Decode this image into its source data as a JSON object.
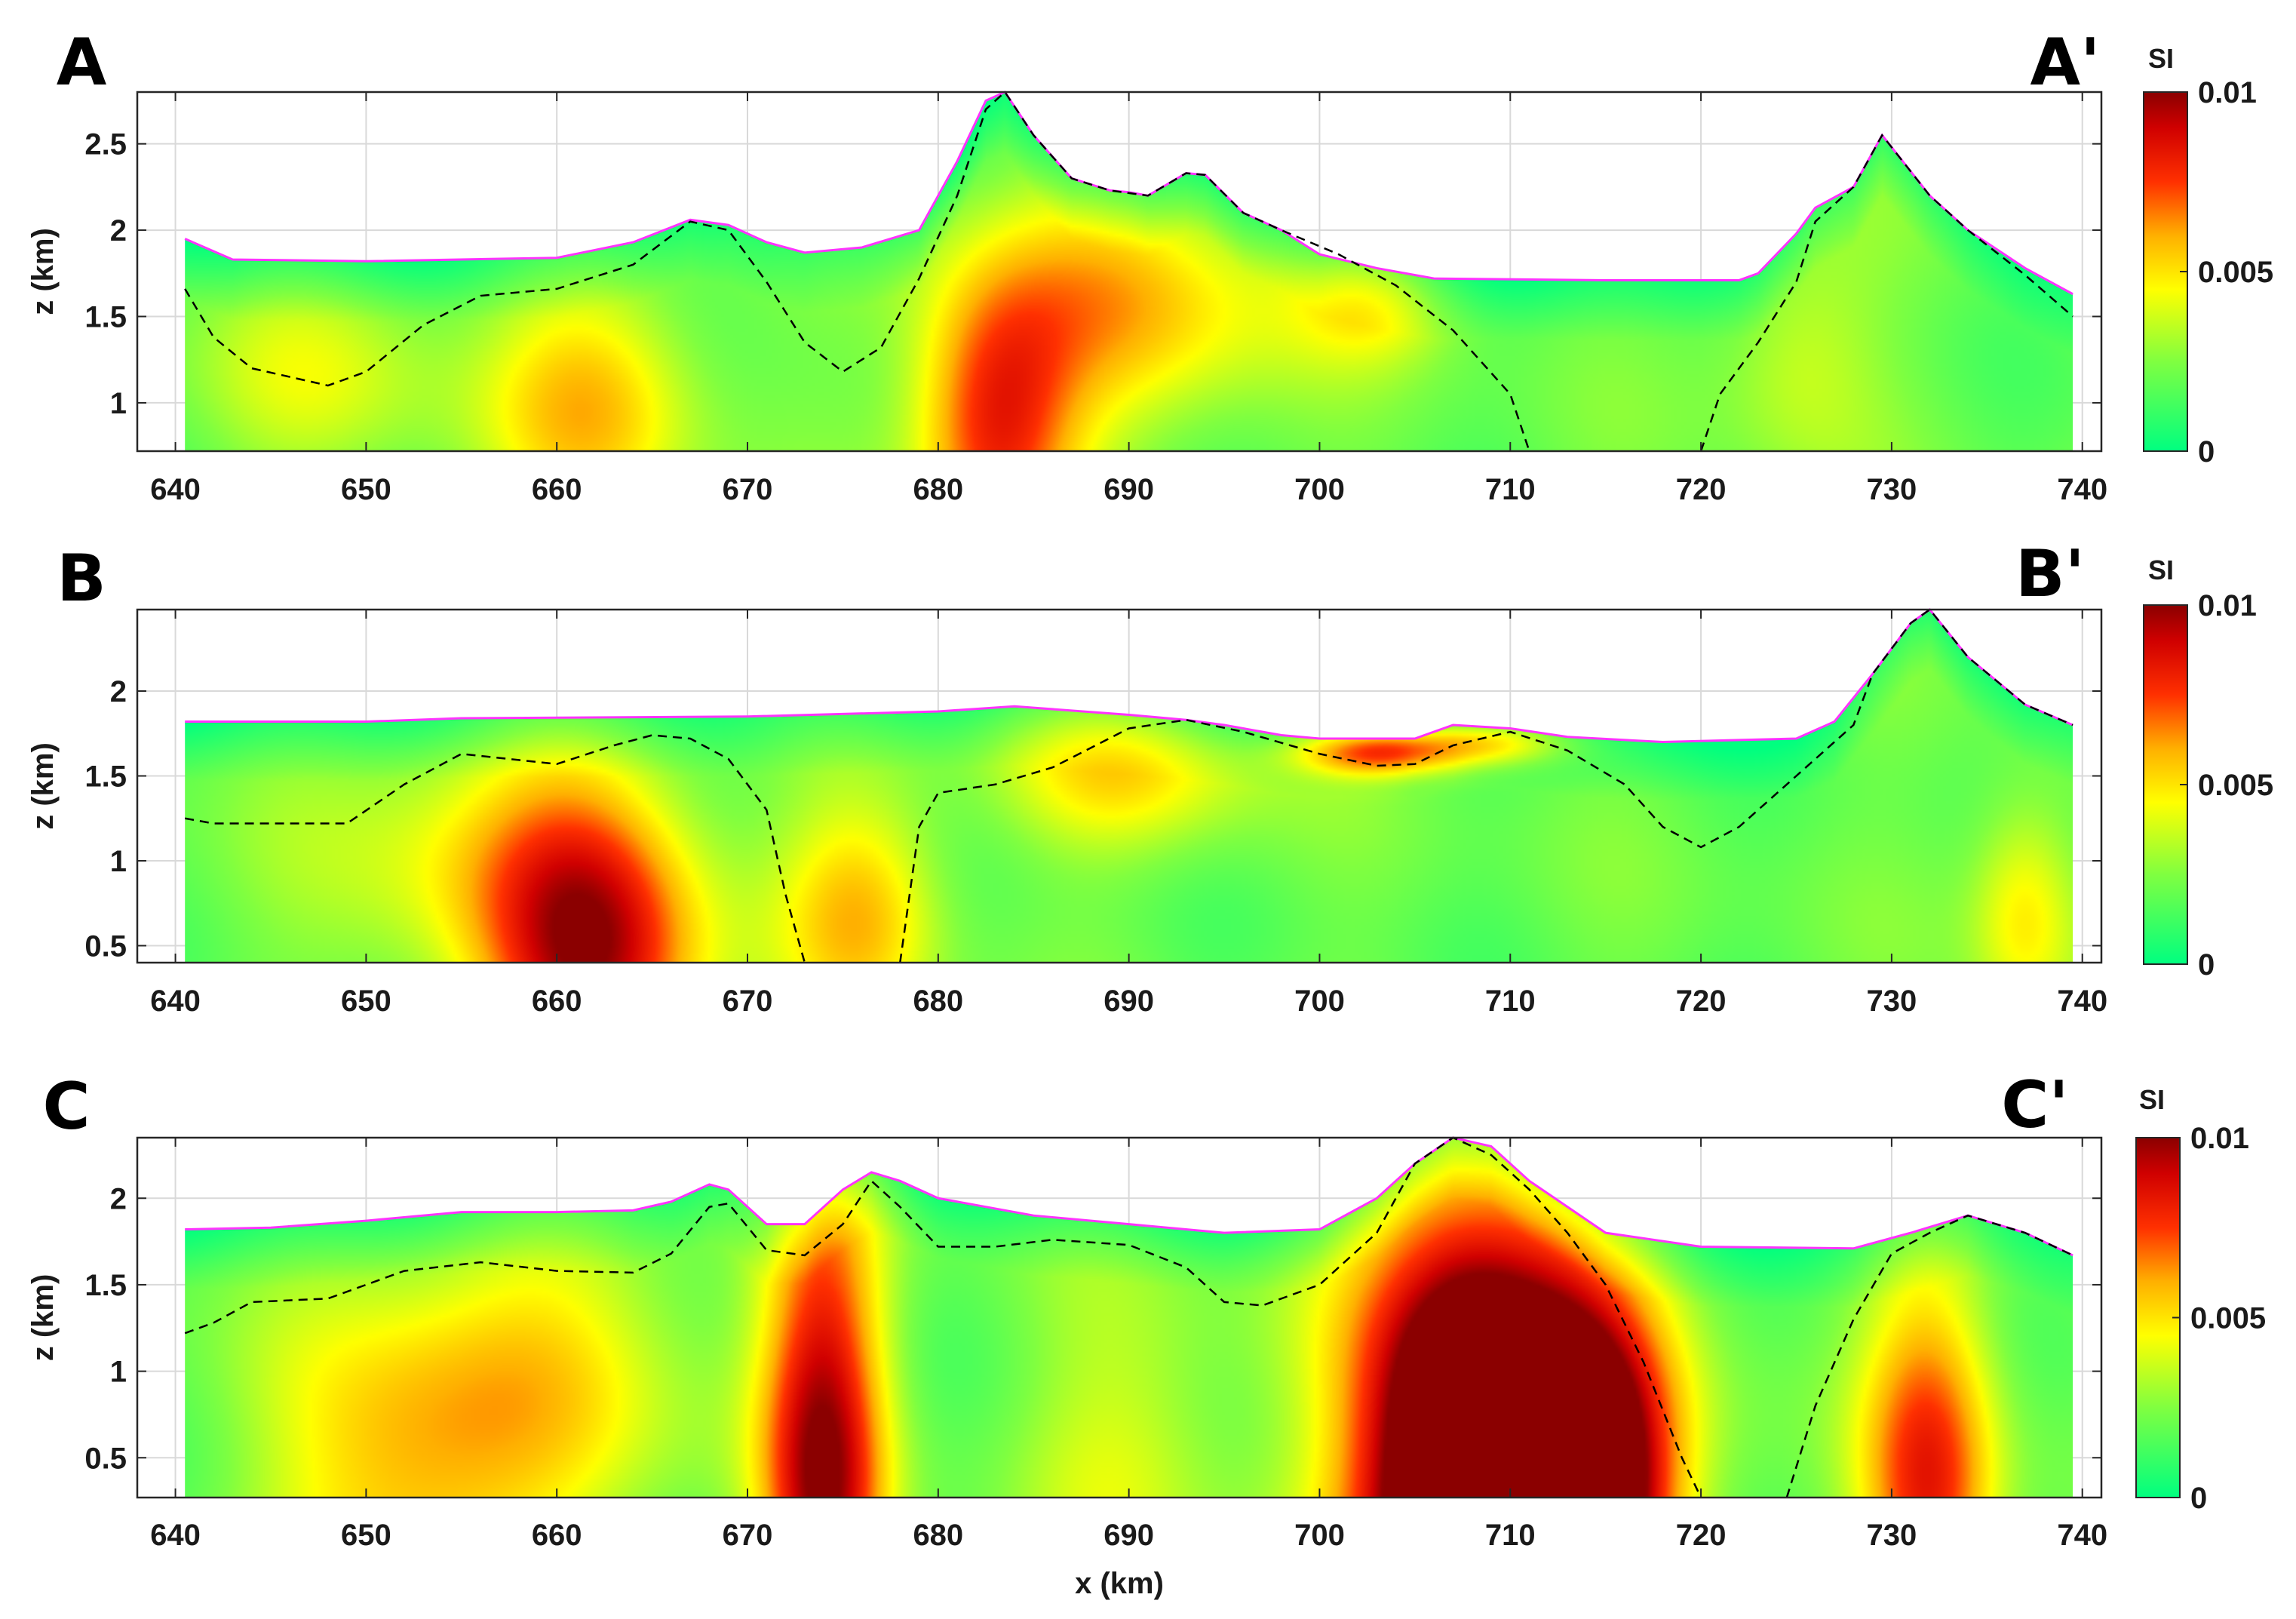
{
  "chart_data": [
    {
      "type": "heatmap",
      "panel_label": "A",
      "end_label": "A'",
      "xlim": [
        638,
        741
      ],
      "ylim": [
        0.72,
        2.8
      ],
      "x_ticks": [
        640,
        650,
        660,
        670,
        680,
        690,
        700,
        710,
        720,
        730,
        740
      ],
      "x_tick_labels": [
        "640",
        "650",
        "660",
        "670",
        "680",
        "690",
        "700",
        "710",
        "720",
        "730",
        "740"
      ],
      "y_ticks": [
        1,
        1.5,
        2,
        2.5
      ],
      "y_tick_labels": [
        "1",
        "1.5",
        "2",
        "2.5"
      ],
      "ylabel": "z (km)",
      "xlabel": "",
      "grid": true,
      "colorbar": {
        "title": "SI",
        "min": 0,
        "max": 0.01,
        "tick_labels": [
          "0.01",
          "0.005",
          "0"
        ]
      },
      "topography": [
        [
          640.5,
          1.95
        ],
        [
          643,
          1.83
        ],
        [
          650,
          1.82
        ],
        [
          660,
          1.84
        ],
        [
          664,
          1.93
        ],
        [
          667,
          2.06
        ],
        [
          669,
          2.03
        ],
        [
          671,
          1.93
        ],
        [
          673,
          1.87
        ],
        [
          676,
          1.9
        ],
        [
          679,
          2.0
        ],
        [
          681,
          2.4
        ],
        [
          682.5,
          2.75
        ],
        [
          683.5,
          2.8
        ],
        [
          685,
          2.55
        ],
        [
          687,
          2.3
        ],
        [
          689,
          2.23
        ],
        [
          690,
          2.22
        ],
        [
          691,
          2.2
        ],
        [
          693,
          2.33
        ],
        [
          694,
          2.32
        ],
        [
          696,
          2.1
        ],
        [
          698,
          2.0
        ],
        [
          700,
          1.86
        ],
        [
          703,
          1.78
        ],
        [
          706,
          1.72
        ],
        [
          715,
          1.71
        ],
        [
          722,
          1.71
        ],
        [
          723,
          1.75
        ],
        [
          725,
          1.98
        ],
        [
          726,
          2.13
        ],
        [
          728,
          2.25
        ],
        [
          729.5,
          2.55
        ],
        [
          732,
          2.2
        ],
        [
          734,
          2.0
        ],
        [
          737,
          1.78
        ],
        [
          739.5,
          1.63
        ]
      ],
      "dashed_boundary": [
        [
          [
            640.5,
            1.66
          ],
          [
            642,
            1.38
          ],
          [
            644,
            1.2
          ],
          [
            648,
            1.1
          ],
          [
            650,
            1.18
          ],
          [
            653,
            1.45
          ],
          [
            656,
            1.62
          ],
          [
            660,
            1.66
          ],
          [
            664,
            1.8
          ],
          [
            667,
            2.05
          ],
          [
            669,
            2.0
          ],
          [
            671,
            1.7
          ],
          [
            673,
            1.35
          ],
          [
            675,
            1.18
          ],
          [
            677,
            1.32
          ],
          [
            679,
            1.72
          ],
          [
            681,
            2.2
          ],
          [
            682.5,
            2.7
          ],
          [
            683.5,
            2.8
          ],
          [
            685,
            2.55
          ],
          [
            687,
            2.3
          ],
          [
            689,
            2.23
          ],
          [
            691,
            2.2
          ],
          [
            693,
            2.33
          ],
          [
            694,
            2.32
          ],
          [
            696,
            2.1
          ],
          [
            698,
            2.0
          ],
          [
            701,
            1.86
          ],
          [
            704,
            1.68
          ],
          [
            707,
            1.42
          ],
          [
            710,
            1.05
          ],
          [
            711,
            0.72
          ]
        ],
        [
          [
            720,
            0.72
          ],
          [
            721,
            1.05
          ],
          [
            723,
            1.35
          ],
          [
            725,
            1.7
          ],
          [
            726,
            2.05
          ],
          [
            728,
            2.25
          ],
          [
            729.5,
            2.55
          ],
          [
            732,
            2.2
          ],
          [
            734,
            2.0
          ],
          [
            737,
            1.74
          ],
          [
            739.5,
            1.5
          ]
        ]
      ],
      "anomalies": [
        {
          "x": 683,
          "z": 0.85,
          "sx": 3,
          "sz": 0.6,
          "a": 0.6
        },
        {
          "x": 662,
          "z": 1.0,
          "sx": 4,
          "sz": 0.5,
          "a": 0.36
        },
        {
          "x": 690,
          "z": 1.55,
          "sx": 6,
          "sz": 0.5,
          "a": 0.36
        },
        {
          "x": 703,
          "z": 1.6,
          "sx": 3,
          "sz": 0.25,
          "a": 0.24
        },
        {
          "x": 648,
          "z": 1.2,
          "sx": 5,
          "sz": 0.4,
          "a": 0.18
        },
        {
          "x": 725,
          "z": 1.3,
          "sx": 3,
          "sz": 0.5,
          "a": 0.18
        }
      ]
    },
    {
      "type": "heatmap",
      "panel_label": "B",
      "end_label": "B'",
      "xlim": [
        638,
        741
      ],
      "ylim": [
        0.4,
        2.48
      ],
      "x_ticks": [
        640,
        650,
        660,
        670,
        680,
        690,
        700,
        710,
        720,
        730,
        740
      ],
      "x_tick_labels": [
        "640",
        "650",
        "660",
        "670",
        "680",
        "690",
        "700",
        "710",
        "720",
        "730",
        "740"
      ],
      "y_ticks": [
        0.5,
        1,
        1.5,
        2
      ],
      "y_tick_labels": [
        "0.5",
        "1",
        "1.5",
        "2"
      ],
      "ylabel": "z (km)",
      "xlabel": "",
      "grid": true,
      "colorbar": {
        "title": "SI",
        "min": 0,
        "max": 0.01,
        "tick_labels": [
          "0.01",
          "0.005",
          "0"
        ]
      },
      "topography": [
        [
          640.5,
          1.82
        ],
        [
          650,
          1.82
        ],
        [
          655,
          1.84
        ],
        [
          670,
          1.85
        ],
        [
          680,
          1.88
        ],
        [
          684,
          1.91
        ],
        [
          690,
          1.86
        ],
        [
          693,
          1.83
        ],
        [
          695,
          1.8
        ],
        [
          698,
          1.74
        ],
        [
          700,
          1.72
        ],
        [
          705,
          1.72
        ],
        [
          707,
          1.8
        ],
        [
          710,
          1.78
        ],
        [
          713,
          1.73
        ],
        [
          718,
          1.7
        ],
        [
          725,
          1.72
        ],
        [
          727,
          1.82
        ],
        [
          729,
          2.1
        ],
        [
          731,
          2.4
        ],
        [
          732,
          2.48
        ],
        [
          734,
          2.2
        ],
        [
          737,
          1.92
        ],
        [
          739.5,
          1.8
        ]
      ],
      "dashed_boundary": [
        [
          [
            640.5,
            1.25
          ],
          [
            642,
            1.22
          ],
          [
            649,
            1.22
          ],
          [
            652,
            1.45
          ],
          [
            655,
            1.63
          ],
          [
            660,
            1.57
          ],
          [
            663,
            1.68
          ],
          [
            665,
            1.74
          ],
          [
            667,
            1.72
          ],
          [
            669,
            1.6
          ],
          [
            671,
            1.3
          ],
          [
            672,
            0.8
          ],
          [
            673,
            0.4
          ]
        ],
        [
          [
            678,
            0.4
          ],
          [
            679,
            1.2
          ],
          [
            680,
            1.4
          ],
          [
            683,
            1.45
          ],
          [
            686,
            1.55
          ],
          [
            690,
            1.78
          ],
          [
            693,
            1.83
          ],
          [
            696,
            1.76
          ],
          [
            700,
            1.63
          ],
          [
            703,
            1.56
          ],
          [
            705,
            1.57
          ],
          [
            707,
            1.68
          ],
          [
            710,
            1.76
          ],
          [
            713,
            1.65
          ],
          [
            716,
            1.45
          ],
          [
            718,
            1.2
          ],
          [
            720,
            1.08
          ],
          [
            722,
            1.2
          ],
          [
            725,
            1.5
          ],
          [
            728,
            1.8
          ],
          [
            729,
            2.1
          ],
          [
            731,
            2.4
          ],
          [
            732,
            2.48
          ],
          [
            734,
            2.2
          ],
          [
            737,
            1.92
          ],
          [
            739.5,
            1.8
          ]
        ]
      ],
      "anomalies": [
        {
          "x": 662,
          "z": 0.4,
          "sx": 4,
          "sz": 0.7,
          "a": 0.7
        },
        {
          "x": 703,
          "z": 1.64,
          "sx": 3,
          "sz": 0.1,
          "a": 0.6
        },
        {
          "x": 709,
          "z": 1.7,
          "sx": 3,
          "sz": 0.1,
          "a": 0.42
        },
        {
          "x": 676,
          "z": 0.7,
          "sx": 3,
          "sz": 0.5,
          "a": 0.36
        },
        {
          "x": 690,
          "z": 1.55,
          "sx": 5,
          "sz": 0.35,
          "a": 0.3
        },
        {
          "x": 737,
          "z": 0.7,
          "sx": 2,
          "sz": 0.5,
          "a": 0.3
        },
        {
          "x": 656,
          "z": 1.0,
          "sx": 6,
          "sz": 0.6,
          "a": 0.24
        }
      ]
    },
    {
      "type": "heatmap",
      "panel_label": "C",
      "end_label": "C'",
      "xlim": [
        638,
        741
      ],
      "ylim": [
        0.27,
        2.35
      ],
      "x_ticks": [
        640,
        650,
        660,
        670,
        680,
        690,
        700,
        710,
        720,
        730,
        740
      ],
      "x_tick_labels": [
        "640",
        "650",
        "660",
        "670",
        "680",
        "690",
        "700",
        "710",
        "720",
        "730",
        "740"
      ],
      "y_ticks": [
        0.5,
        1,
        1.5,
        2
      ],
      "y_tick_labels": [
        "0.5",
        "1",
        "1.5",
        "2"
      ],
      "ylabel": "z (km)",
      "xlabel": "x (km)",
      "grid": true,
      "colorbar": {
        "title": "SI",
        "min": 0,
        "max": 0.01,
        "tick_labels": [
          "0.01",
          "0.005",
          "0"
        ]
      },
      "topography": [
        [
          640.5,
          1.82
        ],
        [
          645,
          1.83
        ],
        [
          650,
          1.87
        ],
        [
          655,
          1.92
        ],
        [
          660,
          1.92
        ],
        [
          664,
          1.93
        ],
        [
          666,
          1.98
        ],
        [
          668,
          2.08
        ],
        [
          669,
          2.05
        ],
        [
          671,
          1.85
        ],
        [
          673,
          1.85
        ],
        [
          675,
          2.05
        ],
        [
          676.5,
          2.15
        ],
        [
          678,
          2.1
        ],
        [
          680,
          2.0
        ],
        [
          685,
          1.9
        ],
        [
          690,
          1.85
        ],
        [
          695,
          1.8
        ],
        [
          700,
          1.82
        ],
        [
          703,
          2.0
        ],
        [
          705,
          2.2
        ],
        [
          707,
          2.35
        ],
        [
          709,
          2.3
        ],
        [
          711,
          2.1
        ],
        [
          715,
          1.8
        ],
        [
          720,
          1.72
        ],
        [
          728,
          1.71
        ],
        [
          731,
          1.8
        ],
        [
          734,
          1.9
        ],
        [
          737,
          1.8
        ],
        [
          739.5,
          1.67
        ]
      ],
      "dashed_boundary": [
        [
          [
            640.5,
            1.22
          ],
          [
            642,
            1.28
          ],
          [
            644,
            1.4
          ],
          [
            648,
            1.42
          ],
          [
            652,
            1.58
          ],
          [
            656,
            1.63
          ],
          [
            660,
            1.58
          ],
          [
            664,
            1.57
          ],
          [
            666,
            1.68
          ],
          [
            668,
            1.95
          ],
          [
            669,
            1.97
          ],
          [
            671,
            1.7
          ],
          [
            673,
            1.67
          ],
          [
            675,
            1.85
          ],
          [
            676.5,
            2.1
          ],
          [
            678,
            1.95
          ],
          [
            680,
            1.72
          ],
          [
            683,
            1.72
          ],
          [
            686,
            1.76
          ],
          [
            690,
            1.73
          ],
          [
            693,
            1.6
          ],
          [
            695,
            1.4
          ],
          [
            697,
            1.38
          ],
          [
            700,
            1.5
          ],
          [
            703,
            1.8
          ],
          [
            705,
            2.2
          ],
          [
            707,
            2.35
          ],
          [
            709,
            2.25
          ],
          [
            711,
            2.05
          ],
          [
            713,
            1.8
          ],
          [
            715,
            1.5
          ],
          [
            717,
            1.05
          ],
          [
            719,
            0.5
          ],
          [
            720,
            0.27
          ]
        ],
        [
          [
            724.5,
            0.27
          ],
          [
            726,
            0.8
          ],
          [
            728,
            1.3
          ],
          [
            730,
            1.68
          ],
          [
            732,
            1.8
          ],
          [
            734,
            1.9
          ],
          [
            737,
            1.8
          ],
          [
            739.5,
            1.67
          ]
        ]
      ],
      "anomalies": [
        {
          "x": 708,
          "z": 0.3,
          "sx": 3.5,
          "sz": 0.95,
          "a": 1.0
        },
        {
          "x": 714,
          "z": 0.3,
          "sx": 3,
          "sz": 0.7,
          "a": 0.9
        },
        {
          "x": 709,
          "z": 0.3,
          "sx": 6,
          "sz": 1.4,
          "a": 0.6
        },
        {
          "x": 674,
          "z": 0.4,
          "sx": 2.3,
          "sz": 1.2,
          "a": 0.78
        },
        {
          "x": 732,
          "z": 0.3,
          "sx": 2.5,
          "sz": 0.9,
          "a": 0.6
        },
        {
          "x": 652,
          "z": 0.3,
          "sx": 5,
          "sz": 0.8,
          "a": 0.36
        },
        {
          "x": 660,
          "z": 1.0,
          "sx": 6,
          "sz": 0.7,
          "a": 0.24
        },
        {
          "x": 690,
          "z": 0.5,
          "sx": 4,
          "sz": 0.7,
          "a": 0.18
        }
      ]
    }
  ]
}
